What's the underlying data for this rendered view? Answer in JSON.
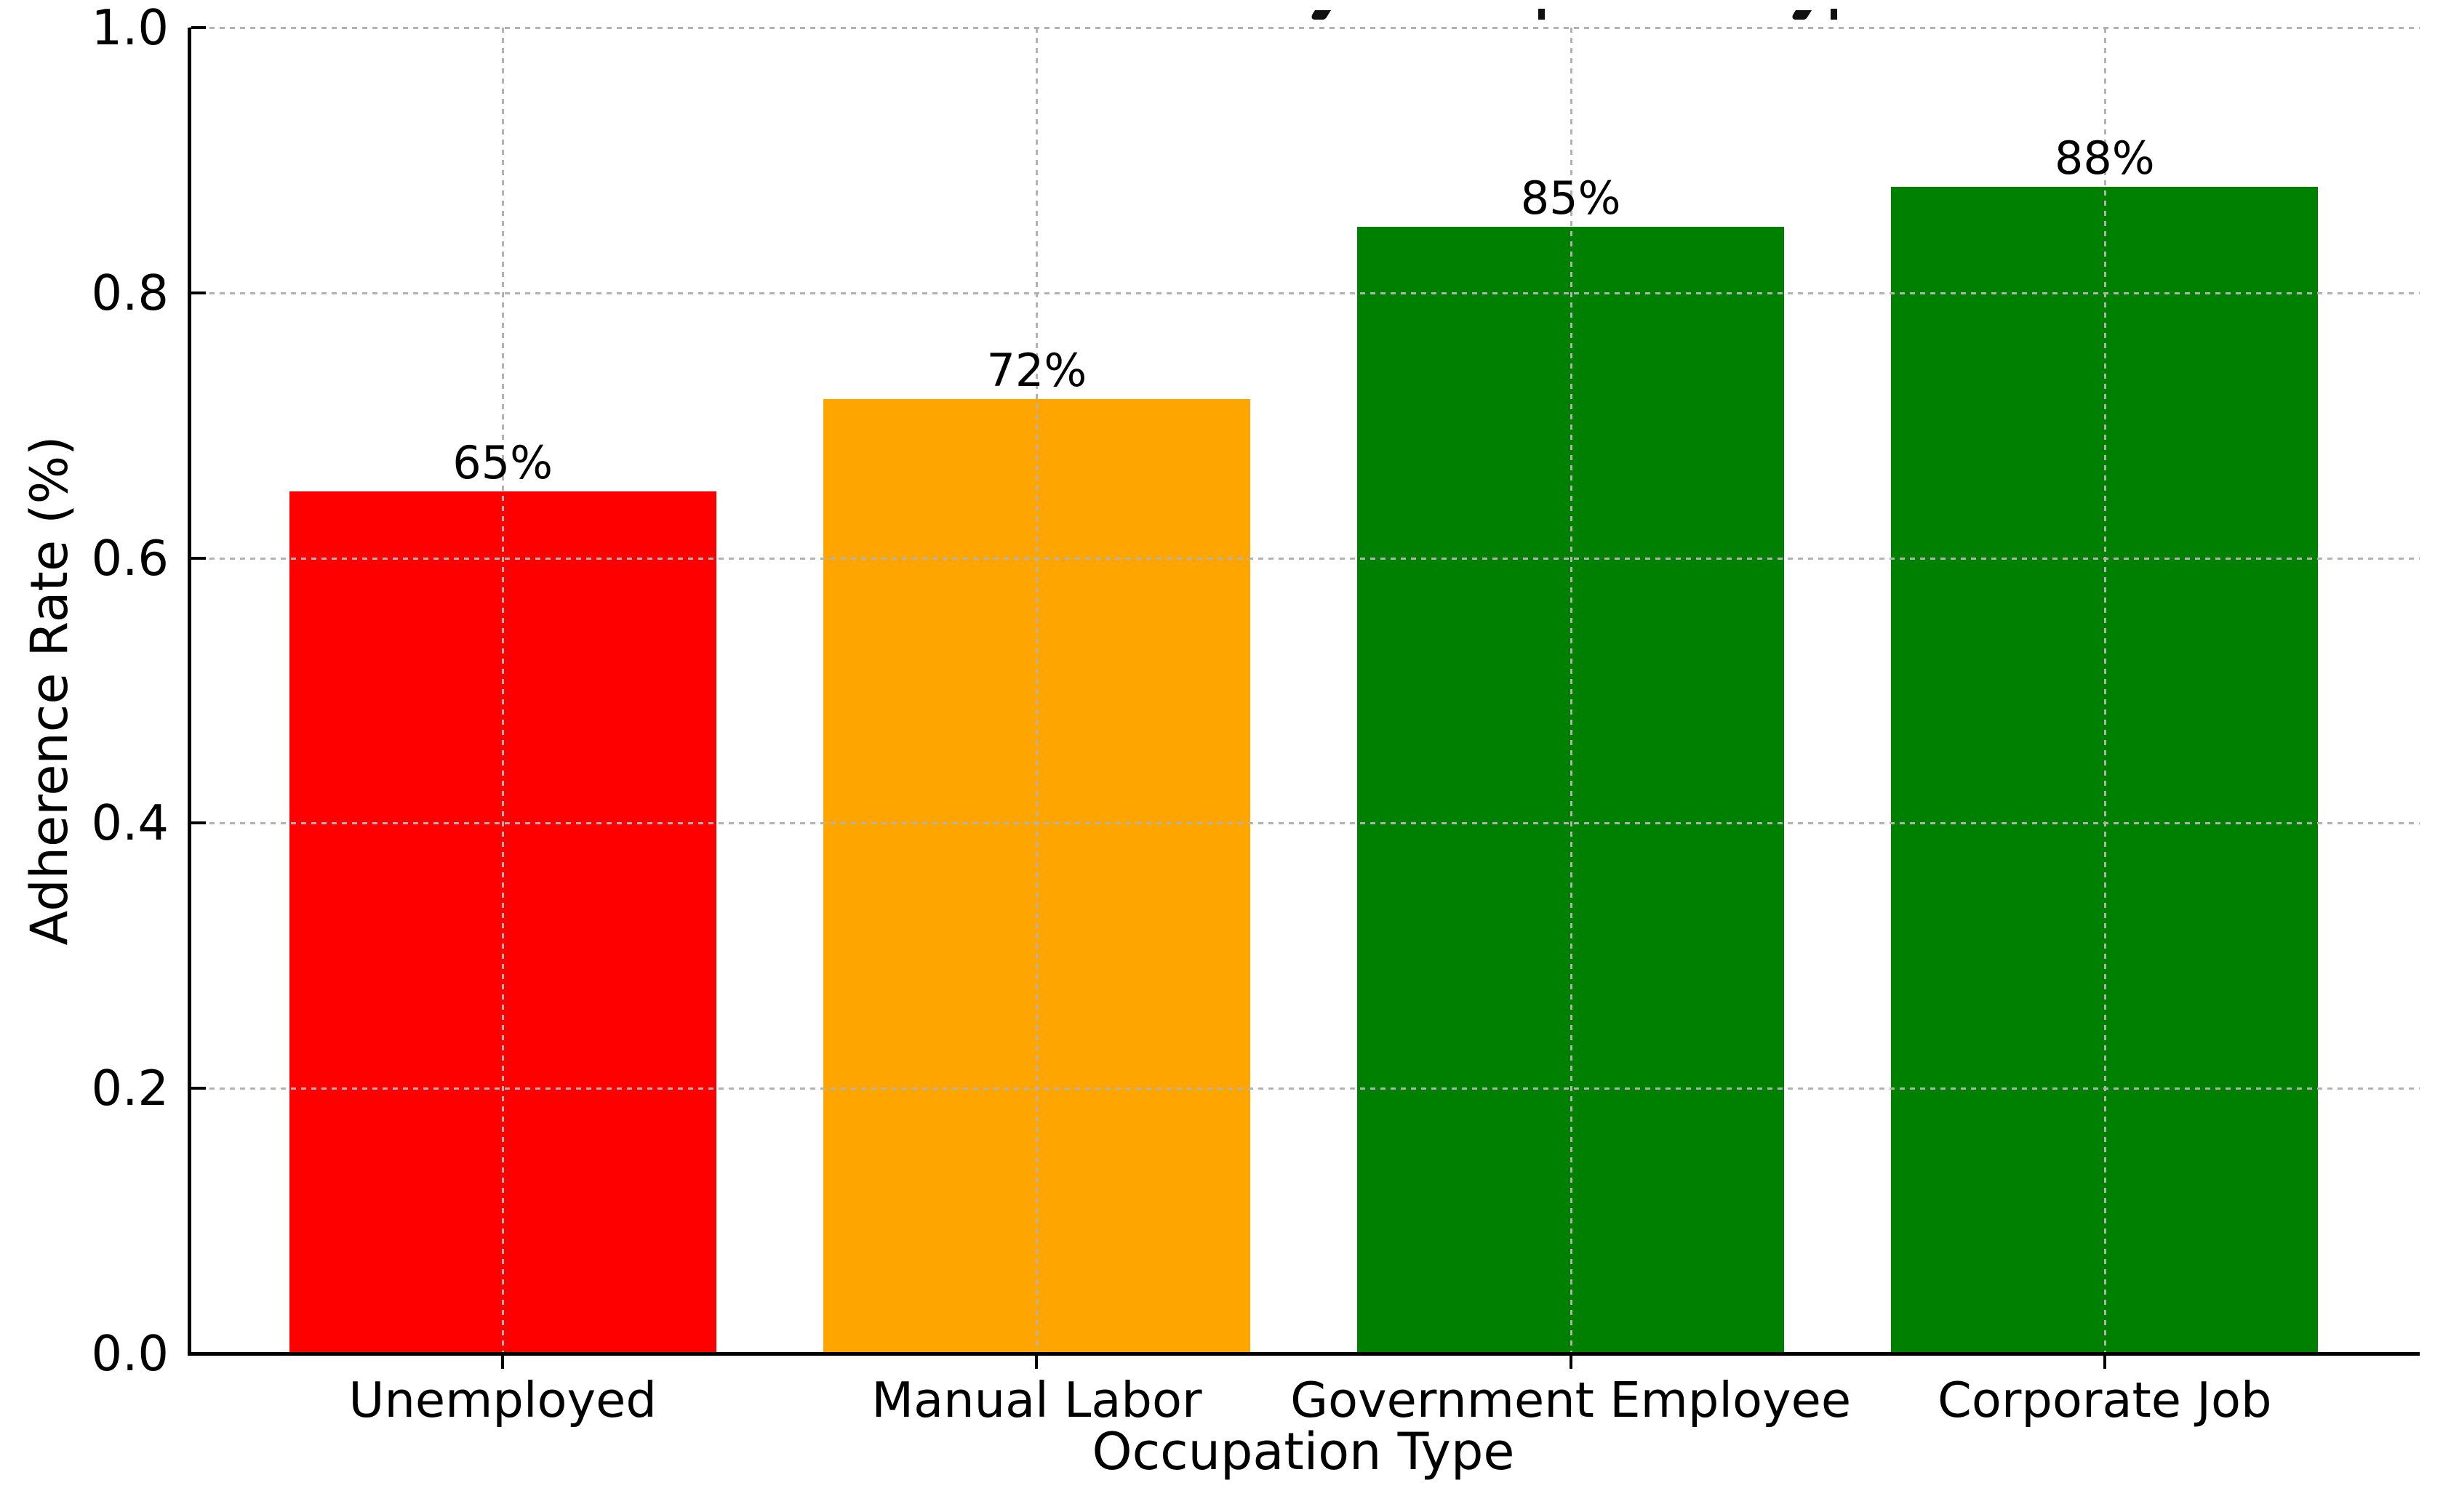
{
  "chart_data": {
    "type": "bar",
    "title": "",
    "title_clipped": true,
    "xlabel": "Occupation Type",
    "ylabel": "Adherence Rate (%)",
    "categories": [
      "Unemployed",
      "Manual Labor",
      "Government Employee",
      "Corporate Job"
    ],
    "values": [
      0.65,
      0.72,
      0.85,
      0.88
    ],
    "bar_labels": [
      "65%",
      "72%",
      "85%",
      "88%"
    ],
    "bar_colors": [
      "#ff0000",
      "#ffa500",
      "#008000",
      "#008000"
    ],
    "ylim": [
      0.0,
      1.0
    ],
    "yticks": [
      0.0,
      0.2,
      0.4,
      0.6,
      0.8,
      1.0
    ],
    "ytick_labels": [
      "0.0",
      "0.2",
      "0.4",
      "0.6",
      "0.8",
      "1.0"
    ],
    "grid": {
      "style": "dashed",
      "color": "#b2b2b2",
      "drawn_over_bars": true
    },
    "background": "#ffffff",
    "text_color": "#000000",
    "title_fragments": [
      {
        "glyph": "y-descender",
        "x": 1804
      },
      {
        "glyph": "p-descender",
        "x": 2115
      },
      {
        "glyph": "y-descender",
        "x": 2465
      },
      {
        "glyph": "p-descender",
        "x": 2517
      }
    ]
  }
}
